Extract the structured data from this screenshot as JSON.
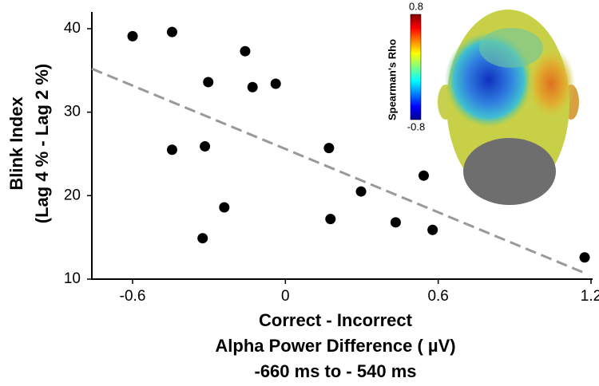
{
  "chart_data": {
    "type": "scatter",
    "xlabel": [
      "Correct - Incorrect",
      "Alpha Power Difference ( µV)",
      "-660 ms to - 540 ms"
    ],
    "ylabel": [
      "Blink Index",
      "(Lag 4 % - Lag 2 %)"
    ],
    "x": [
      -0.6,
      -0.445,
      -0.158,
      -0.303,
      -0.129,
      -0.038,
      -0.445,
      -0.316,
      0.171,
      0.543,
      0.297,
      -0.24,
      0.177,
      0.433,
      0.578,
      -0.325,
      1.175
    ],
    "y": [
      39.1,
      39.6,
      37.3,
      33.6,
      33.0,
      33.4,
      25.5,
      25.9,
      25.7,
      22.4,
      20.5,
      18.6,
      17.2,
      16.8,
      15.9,
      14.9,
      12.6
    ],
    "color": "#000000",
    "fit": {
      "x": [
        -0.76,
        1.17
      ],
      "y": [
        35.2,
        10.8
      ],
      "color": "#999999"
    },
    "xlim": [
      -0.76,
      1.2
    ],
    "ylim": [
      10,
      42
    ],
    "xticks": [
      -0.6,
      0,
      0.6,
      1.2
    ],
    "yticks": [
      10,
      20,
      30,
      40
    ],
    "colorbar": {
      "label": "Spearman's Rho",
      "ticks": [
        0.8,
        -0.8
      ]
    }
  }
}
